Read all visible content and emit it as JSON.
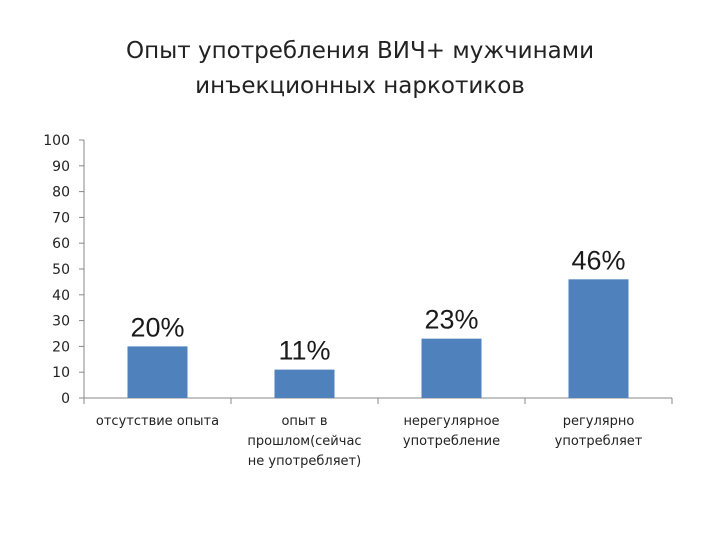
{
  "chart_data": {
    "type": "bar",
    "title_lines": [
      "Опыт употребления ВИЧ+ мужчинами",
      "инъекционных наркотиков"
    ],
    "categories": [
      [
        "отсутствие опыта"
      ],
      [
        "опыт в",
        "прошлом(сейчас",
        "не употребляет)"
      ],
      [
        "нерегулярное",
        "употребление"
      ],
      [
        "регулярно",
        "употребляет"
      ]
    ],
    "values": [
      20,
      11,
      23,
      46
    ],
    "data_labels": [
      "20%",
      "11%",
      "23%",
      "46%"
    ],
    "y_ticks": [
      "0",
      "10",
      "20",
      "30",
      "40",
      "50",
      "60",
      "70",
      "80",
      "90",
      "100"
    ],
    "ylim": [
      0,
      100
    ],
    "xlabel": "",
    "ylabel": "",
    "grid": false,
    "legend": "none",
    "bar_color": "#4f81bd",
    "axis_color": "#888888"
  }
}
